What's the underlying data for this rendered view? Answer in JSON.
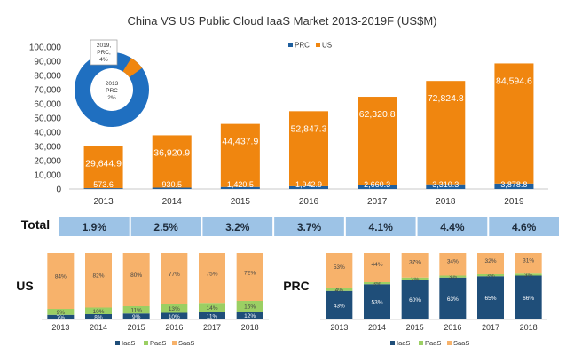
{
  "chart_data": [
    {
      "type": "bar",
      "title": "China VS US Public Cloud IaaS Market 2013-2019F (US$M)",
      "categories": [
        "2013",
        "2014",
        "2015",
        "2016",
        "2017",
        "2018",
        "2019"
      ],
      "series": [
        {
          "name": "PRC",
          "color": "#1f5f9e",
          "values": [
            573.6,
            930.5,
            1420.5,
            1942.9,
            2660.3,
            3310.3,
            3878.8
          ],
          "labels": [
            "573.6",
            "930.5",
            "1,420.5",
            "1,942.9",
            "2,660.3",
            "3,310.3",
            "3,878.8"
          ]
        },
        {
          "name": "US",
          "color": "#f0860f",
          "values": [
            29644.9,
            36920.9,
            44437.9,
            52847.3,
            62320.8,
            72824.8,
            84594.6
          ],
          "labels": [
            "29,644.9",
            "36,920.9",
            "44,437.9",
            "52,847.3",
            "62,320.8",
            "72,824.8",
            "84,594.6"
          ]
        }
      ],
      "yticks": [
        "0",
        "10,000",
        "20,000",
        "30,000",
        "40,000",
        "50,000",
        "60,000",
        "70,000",
        "80,000",
        "90,000",
        "100,000"
      ],
      "ylim": [
        0,
        100000
      ],
      "stacked": true,
      "legend": "top"
    },
    {
      "type": "pie",
      "slices": [
        {
          "label": "2019, PRC, 4%",
          "value": 4,
          "color": "#f0860f"
        },
        {
          "label": "2013 PRC 2%",
          "value": 2,
          "color": "#1f6fc0"
        }
      ],
      "placement": "top-left inset (doughnut)"
    },
    {
      "type": "table",
      "row_label": "Total",
      "categories": [
        "2013",
        "2014",
        "2015",
        "2016",
        "2017",
        "2018",
        "2019"
      ],
      "values": [
        "1.9%",
        "2.5%",
        "3.2%",
        "3.7%",
        "4.1%",
        "4.4%",
        "4.6%"
      ]
    },
    {
      "type": "bar",
      "title": "US",
      "stacked": true,
      "percent": true,
      "categories": [
        "2013",
        "2014",
        "2015",
        "2016",
        "2017",
        "2018"
      ],
      "series": [
        {
          "name": "IaaS",
          "color": "#1f4e79",
          "values": [
            7,
            8,
            9,
            10,
            11,
            12
          ],
          "labels": [
            "7%",
            "8%",
            "9%",
            "10%",
            "11%",
            "12%"
          ]
        },
        {
          "name": "PaaS",
          "color": "#9bcf63",
          "values": [
            9,
            10,
            11,
            13,
            14,
            16
          ],
          "labels": [
            "9%",
            "10%",
            "11%",
            "13%",
            "14%",
            "16%"
          ]
        },
        {
          "name": "SaaS",
          "color": "#f7b26b",
          "values": [
            84,
            82,
            80,
            77,
            75,
            72
          ],
          "labels": [
            "84%",
            "82%",
            "80%",
            "77%",
            "75%",
            "72%"
          ]
        }
      ]
    },
    {
      "type": "bar",
      "title": "PRC",
      "stacked": true,
      "percent": true,
      "categories": [
        "2013",
        "2014",
        "2015",
        "2016",
        "2017",
        "2018"
      ],
      "series": [
        {
          "name": "IaaS",
          "color": "#1f4e79",
          "values": [
            43,
            53,
            60,
            63,
            65,
            66
          ],
          "labels": [
            "43%",
            "53%",
            "60%",
            "63%",
            "65%",
            "66%"
          ]
        },
        {
          "name": "PaaS",
          "color": "#9bcf63",
          "values": [
            4,
            3,
            3,
            3,
            3,
            3
          ],
          "labels": [
            "4%",
            "3%",
            "3%",
            "3%",
            "3%",
            "3%"
          ]
        },
        {
          "name": "SaaS",
          "color": "#f7b26b",
          "values": [
            53,
            44,
            37,
            34,
            32,
            31
          ],
          "labels": [
            "53%",
            "44%",
            "37%",
            "34%",
            "32%",
            "31%"
          ]
        }
      ]
    }
  ]
}
